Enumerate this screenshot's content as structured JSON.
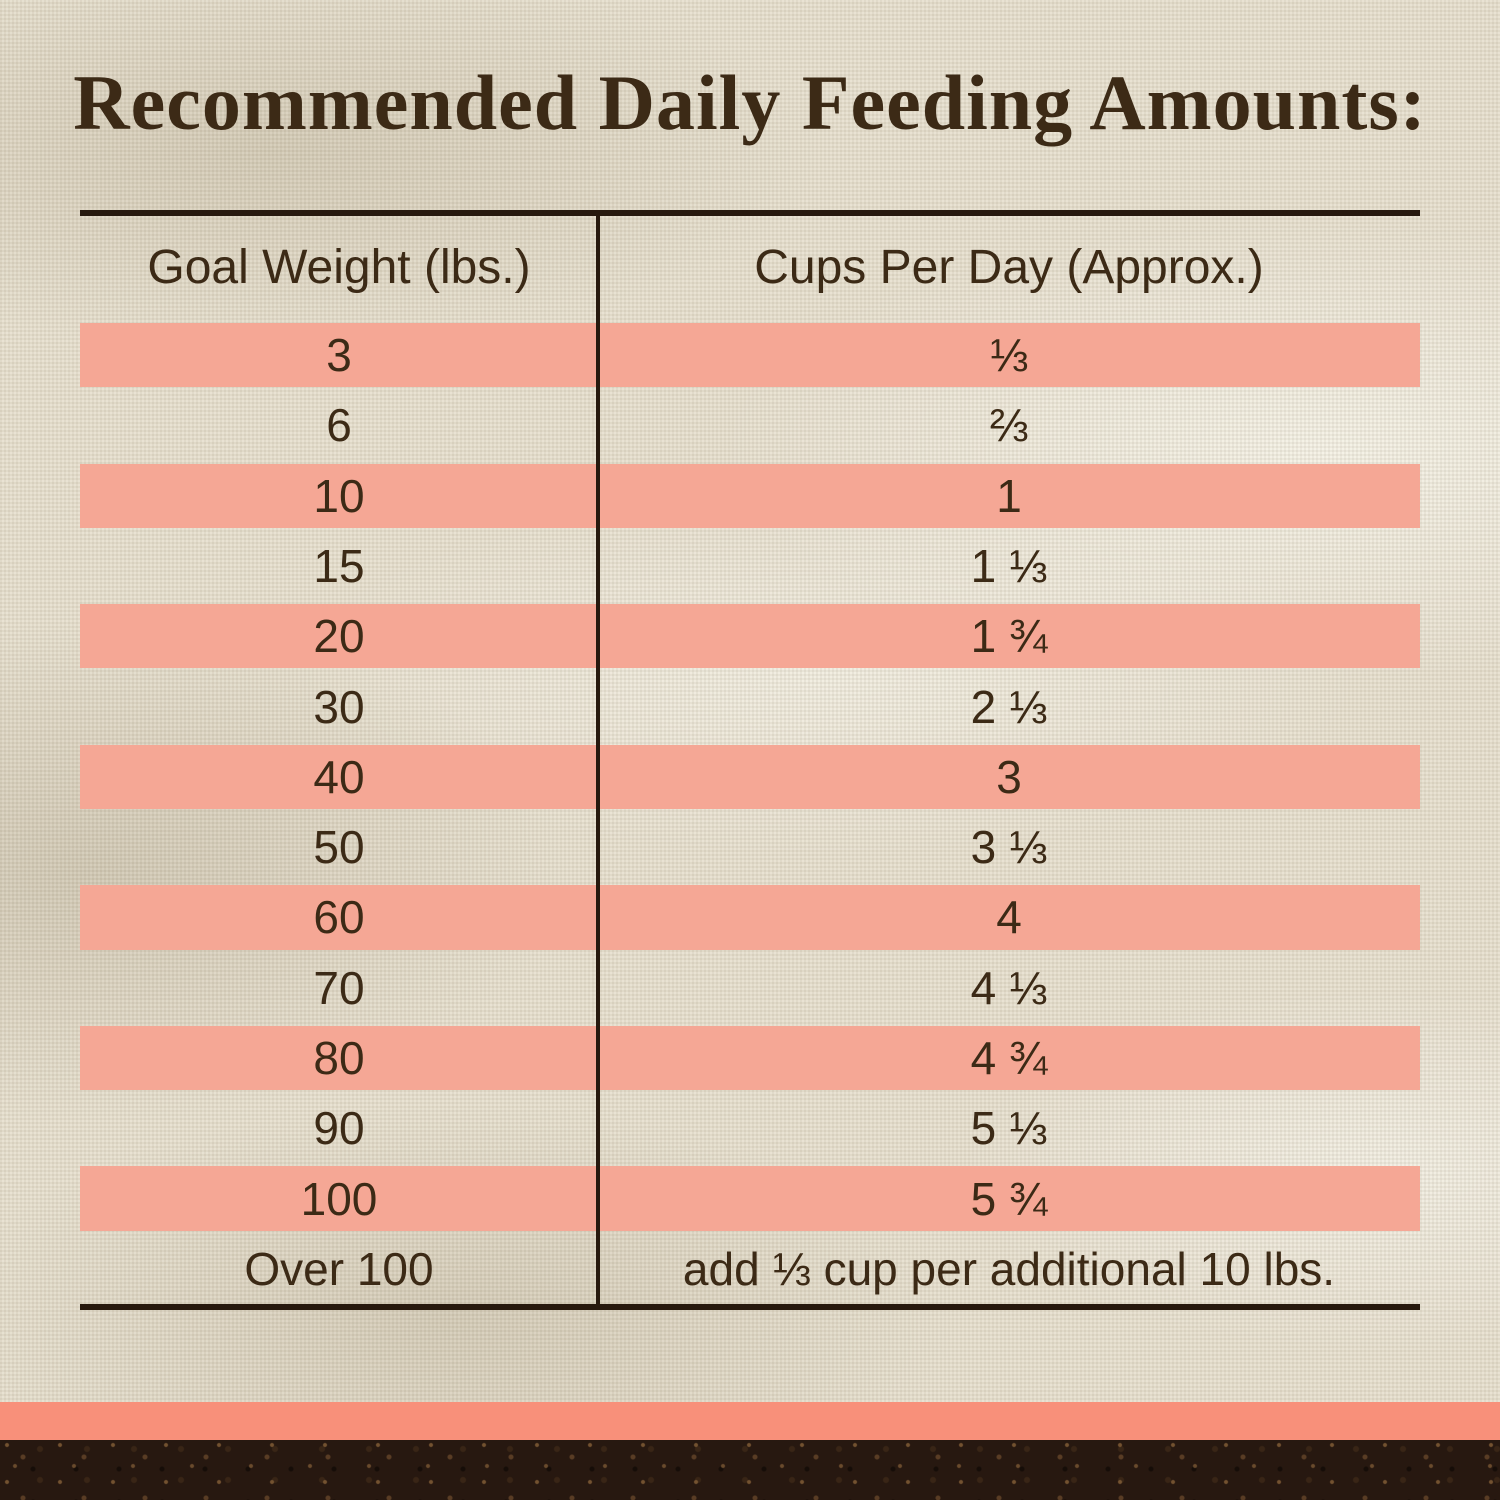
{
  "title": "Recommended Daily Feeding Amounts:",
  "table": {
    "columns": [
      "Goal Weight (lbs.)",
      "Cups Per Day (Approx.)"
    ],
    "rows": [
      {
        "goal": "3",
        "cups": "⅓",
        "highlight": true
      },
      {
        "goal": "6",
        "cups": "⅔",
        "highlight": false
      },
      {
        "goal": "10",
        "cups": "1",
        "highlight": true
      },
      {
        "goal": "15",
        "cups": "1 ⅓",
        "highlight": false
      },
      {
        "goal": "20",
        "cups": "1 ¾",
        "highlight": true
      },
      {
        "goal": "30",
        "cups": "2 ⅓",
        "highlight": false
      },
      {
        "goal": "40",
        "cups": "3",
        "highlight": true
      },
      {
        "goal": "50",
        "cups": "3 ⅓",
        "highlight": false
      },
      {
        "goal": "60",
        "cups": "4",
        "highlight": true
      },
      {
        "goal": "70",
        "cups": "4 ⅓",
        "highlight": false
      },
      {
        "goal": "80",
        "cups": "4 ¾",
        "highlight": true
      },
      {
        "goal": "90",
        "cups": "5 ⅓",
        "highlight": false
      },
      {
        "goal": "100",
        "cups": "5 ¾",
        "highlight": true
      },
      {
        "goal": "Over 100",
        "cups": "add ⅓ cup per additional 10 lbs.",
        "highlight": false
      }
    ]
  },
  "chart_data": {
    "type": "table",
    "title": "Recommended Daily Feeding Amounts:",
    "columns": [
      "Goal Weight (lbs.)",
      "Cups Per Day (Approx.)"
    ],
    "rows": [
      [
        "3",
        "⅓"
      ],
      [
        "6",
        "⅔"
      ],
      [
        "10",
        "1"
      ],
      [
        "15",
        "1 ⅓"
      ],
      [
        "20",
        "1 ¾"
      ],
      [
        "30",
        "2 ⅓"
      ],
      [
        "40",
        "3"
      ],
      [
        "50",
        "3 ⅓"
      ],
      [
        "60",
        "4"
      ],
      [
        "70",
        "4 ⅓"
      ],
      [
        "80",
        "4 ¾"
      ],
      [
        "90",
        "5 ⅓"
      ],
      [
        "100",
        "5 ¾"
      ],
      [
        "Over 100",
        "add ⅓ cup per additional 10 lbs."
      ]
    ],
    "layout": "alternating salmon highlight stripes starting on first data row; single center column divider; heavy top and bottom rules"
  },
  "colors": {
    "background": "#e7e0cf",
    "text": "#3c2a16",
    "line": "#27190e",
    "row_highlight": "#f5a795",
    "footer_band": "#f8907a",
    "footer_soil": "#271810"
  }
}
